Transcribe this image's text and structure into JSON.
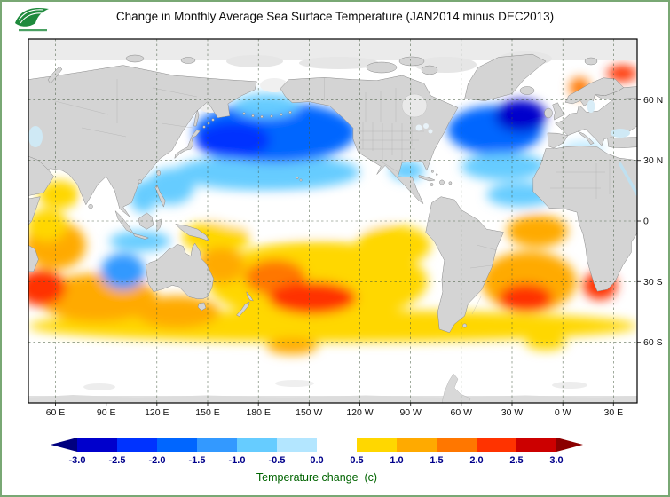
{
  "header": {
    "title": "Change in Monthly Average Sea Surface Temperature (JAN2014 minus DEC2013)"
  },
  "logo": {
    "primary_color": "#1e8a3c"
  },
  "chart_data": {
    "type": "heatmap",
    "subtype": "global-sst-anomaly-map",
    "title": "Change in Monthly Average Sea Surface Temperature (JAN2014 minus DEC2013)",
    "projection": "equirectangular",
    "grid": true,
    "land_color": "#d4d4d4",
    "ocean_neutral_color": "#ffffff",
    "lon_axis": {
      "labels": [
        "60 E",
        "90 E",
        "120 E",
        "150 E",
        "180 E",
        "150 W",
        "120 W",
        "90 W",
        "60 W",
        "30 W",
        "0 W",
        "30 E"
      ],
      "values_deg_east": [
        60,
        90,
        120,
        150,
        180,
        210,
        240,
        270,
        300,
        330,
        360,
        390
      ],
      "range_deg_east": [
        44,
        404
      ]
    },
    "lat_axis": {
      "labels": [
        "60 N",
        "30 N",
        "0",
        "30 S",
        "60 S"
      ],
      "values": [
        60,
        30,
        0,
        -30,
        -60
      ],
      "range": [
        -90,
        90
      ]
    },
    "colorbar": {
      "caption": "Temperature change  (c)",
      "tick_labels": [
        "-3.0",
        "-2.5",
        "-2.0",
        "-1.5",
        "-1.0",
        "-0.5",
        "0.0",
        "0.5",
        "1.0",
        "1.5",
        "2.0",
        "2.5",
        "3.0"
      ],
      "tick_values": [
        -3,
        -2.5,
        -2,
        -1.5,
        -1,
        -0.5,
        0,
        0.5,
        1,
        1.5,
        2,
        2.5,
        3
      ],
      "segment_colors": [
        "#00007f",
        "#0000cc",
        "#0033ff",
        "#0066ff",
        "#3399ff",
        "#66ccff",
        "#b3e6ff",
        "#ffffff",
        "#ffd700",
        "#ffaa00",
        "#ff7700",
        "#ff3300",
        "#cc0000",
        "#8b0000"
      ]
    },
    "anomaly_regions": [
      {
        "name": "southern-ocean-band",
        "lon": 224,
        "lat": -52,
        "rlon": 180,
        "rlat": 8,
        "value": 0.7
      },
      {
        "name": "south-pacific-band",
        "lon": 215,
        "lat": -30,
        "rlon": 65,
        "rlat": 20,
        "value": 0.9
      },
      {
        "name": "south-indian-band",
        "lon": 85,
        "lat": -38,
        "rlon": 35,
        "rlat": 12,
        "value": 1.2
      },
      {
        "name": "south-atlantic-band",
        "lon": 340,
        "lat": -30,
        "rlon": 28,
        "rlat": 15,
        "value": 1.0
      },
      {
        "name": "east-pacific-warm",
        "lon": 260,
        "lat": -12,
        "rlon": 22,
        "rlat": 10,
        "value": 0.8
      },
      {
        "name": "west-indian-warm",
        "lon": 60,
        "lat": -12,
        "rlon": 18,
        "rlat": 12,
        "value": 1.2
      },
      {
        "name": "arabian-sea-warm",
        "lon": 62,
        "lat": 13,
        "rlon": 12,
        "rlat": 7,
        "value": 0.6
      },
      {
        "name": "equatorial-west-indian-warm",
        "lon": 55,
        "lat": -2,
        "rlon": 12,
        "rlat": 8,
        "value": 0.8
      },
      {
        "name": "tropical-west-pacific-warm",
        "lon": 155,
        "lat": -8,
        "rlon": 20,
        "rlat": 8,
        "value": 0.6
      },
      {
        "name": "equatorial-atlantic-warm",
        "lon": 345,
        "lat": -5,
        "rlon": 18,
        "rlat": 8,
        "value": 1.0
      },
      {
        "name": "coral-sea-warm",
        "lon": 158,
        "lat": -22,
        "rlon": 14,
        "rlat": 9,
        "value": 1.2
      },
      {
        "name": "south-of-australia-warm",
        "lon": 132,
        "lat": -45,
        "rlon": 25,
        "rlat": 8,
        "value": 1.0
      },
      {
        "name": "ross-sea-warm",
        "lon": 200,
        "lat": -62,
        "rlon": 15,
        "rlat": 4,
        "value": 1.0
      },
      {
        "name": "weddell-edge-warm",
        "lon": 350,
        "lat": -60,
        "rlon": 12,
        "rlat": 4,
        "value": 0.8
      },
      {
        "name": "subtropical-north-pacific-cool",
        "lon": 185,
        "lat": 24,
        "rlon": 55,
        "rlat": 9,
        "value": -1.0
      },
      {
        "name": "north-pacific-cool",
        "lon": 190,
        "lat": 44,
        "rlon": 48,
        "rlat": 15,
        "value": -1.8
      },
      {
        "name": "bering-sea-cool",
        "lon": 185,
        "lat": 57,
        "rlon": 20,
        "rlat": 6,
        "value": -1.0
      },
      {
        "name": "philippine-sea-cool",
        "lon": 128,
        "lat": 17,
        "rlon": 14,
        "rlat": 9,
        "value": -0.8
      },
      {
        "name": "south-china-sea-cool",
        "lon": 112,
        "lat": 12,
        "rlon": 8,
        "rlat": 8,
        "value": -0.6
      },
      {
        "name": "west-australia-cool",
        "lon": 100,
        "lat": -25,
        "rlon": 13,
        "rlat": 9,
        "value": -1.2
      },
      {
        "name": "south-of-indonesia-cool",
        "lon": 110,
        "lat": -10,
        "rlon": 18,
        "rlat": 5,
        "value": -0.6
      },
      {
        "name": "north-atlantic-cool",
        "lon": 320,
        "lat": 45,
        "rlon": 28,
        "rlat": 12,
        "value": -1.8
      },
      {
        "name": "subtropical-north-atlantic-cool",
        "lon": 325,
        "lat": 27,
        "rlon": 25,
        "rlat": 7,
        "value": -1.0
      },
      {
        "name": "tropical-north-atlantic-cool",
        "lon": 335,
        "lat": 13,
        "rlon": 20,
        "rlat": 6,
        "value": -0.6
      },
      {
        "name": "gulf-of-mexico-cool",
        "lon": 268,
        "lat": 25,
        "rlon": 10,
        "rlat": 5,
        "value": -0.8
      },
      {
        "name": "mediterranean-cool",
        "lon": 372,
        "lat": 36,
        "rlon": 12,
        "rlat": 3,
        "value": -0.5
      },
      {
        "name": "equatorial-pacific-neutral",
        "lon": 205,
        "lat": 3,
        "rlon": 55,
        "rlat": 8,
        "value": 0.0
      },
      {
        "name": "northwest-pacific-cool-core",
        "lon": 165,
        "lat": 40,
        "rlon": 22,
        "rlat": 9,
        "value": -2.4
      },
      {
        "name": "northeast-atlantic-cool-core",
        "lon": 335,
        "lat": 52,
        "rlon": 15,
        "rlat": 8,
        "value": -2.6
      },
      {
        "name": "central-south-pacific-warm-core",
        "lon": 190,
        "lat": -28,
        "rlon": 18,
        "rlat": 9,
        "value": 1.5
      },
      {
        "name": "south-pacific-warm-core",
        "lon": 212,
        "lat": -38,
        "rlon": 26,
        "rlat": 8,
        "value": 2.2
      },
      {
        "name": "south-atlantic-warm-core",
        "lon": 338,
        "lat": -38,
        "rlon": 16,
        "rlat": 7,
        "value": 2.3
      },
      {
        "name": "southwest-indian-warm-core",
        "lon": 52,
        "lat": -33,
        "rlon": 14,
        "rlat": 9,
        "value": 2.3
      },
      {
        "name": "benguela-warm-core",
        "lon": 382,
        "lat": -32,
        "rlon": 10,
        "rlat": 7,
        "value": 2.0
      },
      {
        "name": "bay-of-bengal-neutral",
        "lon": 87,
        "lat": 12,
        "rlon": 8,
        "rlat": 6,
        "value": 0.3
      },
      {
        "name": "norwegian-sea-warm",
        "lon": 370,
        "lat": 66,
        "rlon": 6,
        "rlat": 5,
        "value": 1.5
      },
      {
        "name": "barents-sea-warm",
        "lon": 395,
        "lat": 73,
        "rlon": 9,
        "rlat": 4,
        "value": 2.0
      }
    ]
  }
}
